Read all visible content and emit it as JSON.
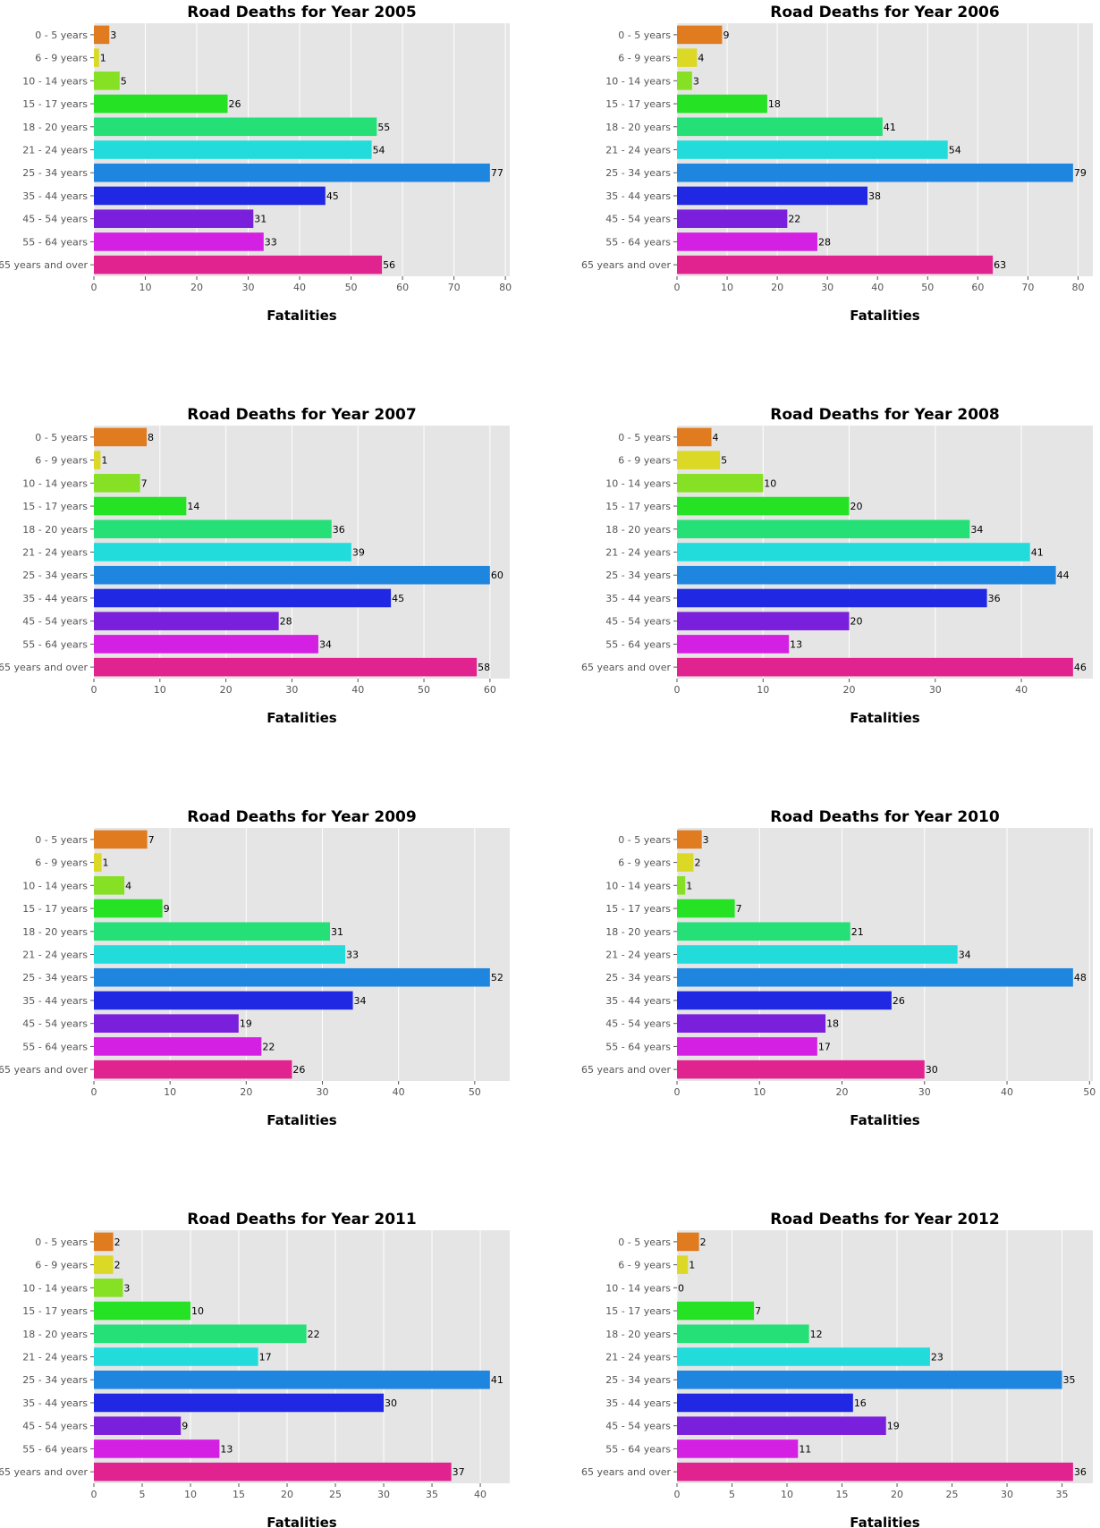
{
  "figure": {
    "colors": [
      "#e07b1f",
      "#dbd925",
      "#86e024",
      "#25e324",
      "#24e076",
      "#22dcdc",
      "#1f86e0",
      "#2028e3",
      "#7a20dd",
      "#d420e3",
      "#e0238f"
    ],
    "background": "#e5e5e5",
    "grid_color": "#ffffff"
  },
  "chart_data": [
    {
      "type": "bar",
      "orientation": "horizontal",
      "title": "Road Deaths for Year 2005",
      "xlabel": "Fatalities",
      "ylabel": "",
      "categories": [
        "0 - 5 years",
        "6 - 9 years",
        "10 - 14 years",
        "15 - 17 years",
        "18 - 20 years",
        "21 - 24 years",
        "25 - 34 years",
        "35 - 44 years",
        "45 - 54 years",
        "55 - 64 years",
        "65 years and over"
      ],
      "values": [
        3,
        1,
        5,
        26,
        55,
        54,
        77,
        45,
        31,
        33,
        56
      ],
      "xlim": [
        0,
        80.85
      ],
      "xticks": [
        0,
        10,
        20,
        30,
        40,
        50,
        60,
        70,
        80
      ]
    },
    {
      "type": "bar",
      "orientation": "horizontal",
      "title": "Road Deaths for Year 2006",
      "xlabel": "Fatalities",
      "ylabel": "",
      "categories": [
        "0 - 5 years",
        "6 - 9 years",
        "10 - 14 years",
        "15 - 17 years",
        "18 - 20 years",
        "21 - 24 years",
        "25 - 34 years",
        "35 - 44 years",
        "45 - 54 years",
        "55 - 64 years",
        "65 years and over"
      ],
      "values": [
        9,
        4,
        3,
        18,
        41,
        54,
        79,
        38,
        22,
        28,
        63
      ],
      "xlim": [
        0,
        82.95
      ],
      "xticks": [
        0,
        10,
        20,
        30,
        40,
        50,
        60,
        70,
        80
      ]
    },
    {
      "type": "bar",
      "orientation": "horizontal",
      "title": "Road Deaths for Year 2007",
      "xlabel": "Fatalities",
      "ylabel": "",
      "categories": [
        "0 - 5 years",
        "6 - 9 years",
        "10 - 14 years",
        "15 - 17 years",
        "18 - 20 years",
        "21 - 24 years",
        "25 - 34 years",
        "35 - 44 years",
        "45 - 54 years",
        "55 - 64 years",
        "65 years and over"
      ],
      "values": [
        8,
        1,
        7,
        14,
        36,
        39,
        60,
        45,
        28,
        34,
        58
      ],
      "xlim": [
        0,
        63
      ],
      "xticks": [
        0,
        10,
        20,
        30,
        40,
        50,
        60
      ]
    },
    {
      "type": "bar",
      "orientation": "horizontal",
      "title": "Road Deaths for Year 2008",
      "xlabel": "Fatalities",
      "ylabel": "",
      "categories": [
        "0 - 5 years",
        "6 - 9 years",
        "10 - 14 years",
        "15 - 17 years",
        "18 - 20 years",
        "21 - 24 years",
        "25 - 34 years",
        "35 - 44 years",
        "45 - 54 years",
        "55 - 64 years",
        "65 years and over"
      ],
      "values": [
        4,
        5,
        10,
        20,
        34,
        41,
        44,
        36,
        20,
        13,
        46
      ],
      "xlim": [
        0,
        48.3
      ],
      "xticks": [
        0,
        10,
        20,
        30,
        40
      ]
    },
    {
      "type": "bar",
      "orientation": "horizontal",
      "title": "Road Deaths for Year 2009",
      "xlabel": "Fatalities",
      "ylabel": "",
      "categories": [
        "0 - 5 years",
        "6 - 9 years",
        "10 - 14 years",
        "15 - 17 years",
        "18 - 20 years",
        "21 - 24 years",
        "25 - 34 years",
        "35 - 44 years",
        "45 - 54 years",
        "55 - 64 years",
        "65 years and over"
      ],
      "values": [
        7,
        1,
        4,
        9,
        31,
        33,
        52,
        34,
        19,
        22,
        26
      ],
      "xlim": [
        0,
        54.6
      ],
      "xticks": [
        0,
        10,
        20,
        30,
        40,
        50
      ]
    },
    {
      "type": "bar",
      "orientation": "horizontal",
      "title": "Road Deaths for Year 2010",
      "xlabel": "Fatalities",
      "ylabel": "",
      "categories": [
        "0 - 5 years",
        "6 - 9 years",
        "10 - 14 years",
        "15 - 17 years",
        "18 - 20 years",
        "21 - 24 years",
        "25 - 34 years",
        "35 - 44 years",
        "45 - 54 years",
        "55 - 64 years",
        "65 years and over"
      ],
      "values": [
        3,
        2,
        1,
        7,
        21,
        34,
        48,
        26,
        18,
        17,
        30
      ],
      "xlim": [
        0,
        50.4
      ],
      "xticks": [
        0,
        10,
        20,
        30,
        40,
        50
      ]
    },
    {
      "type": "bar",
      "orientation": "horizontal",
      "title": "Road Deaths for Year 2011",
      "xlabel": "Fatalities",
      "ylabel": "",
      "categories": [
        "0 - 5 years",
        "6 - 9 years",
        "10 - 14 years",
        "15 - 17 years",
        "18 - 20 years",
        "21 - 24 years",
        "25 - 34 years",
        "35 - 44 years",
        "45 - 54 years",
        "55 - 64 years",
        "65 years and over"
      ],
      "values": [
        2,
        2,
        3,
        10,
        22,
        17,
        41,
        30,
        9,
        13,
        37
      ],
      "xlim": [
        0,
        43.05
      ],
      "xticks": [
        0,
        5,
        10,
        15,
        20,
        25,
        30,
        35,
        40
      ]
    },
    {
      "type": "bar",
      "orientation": "horizontal",
      "title": "Road Deaths for Year 2012",
      "xlabel": "Fatalities",
      "ylabel": "",
      "categories": [
        "0 - 5 years",
        "6 - 9 years",
        "10 - 14 years",
        "15 - 17 years",
        "18 - 20 years",
        "21 - 24 years",
        "25 - 34 years",
        "35 - 44 years",
        "45 - 54 years",
        "55 - 64 years",
        "65 years and over"
      ],
      "values": [
        2,
        1,
        0,
        7,
        12,
        23,
        35,
        16,
        19,
        11,
        36
      ],
      "xlim": [
        0,
        37.8
      ],
      "xticks": [
        0,
        5,
        10,
        15,
        20,
        25,
        30,
        35
      ]
    }
  ]
}
